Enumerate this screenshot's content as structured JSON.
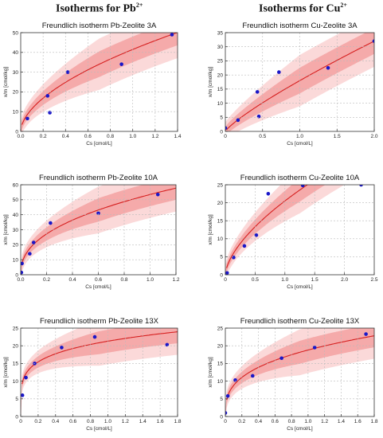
{
  "headers": {
    "left": "Isotherms for Pb",
    "left_sup": "2+",
    "right": "Isotherms for Cu",
    "right_sup": "2+"
  },
  "colors": {
    "fit_line": "#d62020",
    "inner_band": "#f5aaaa",
    "outer_band": "#fbd9d9",
    "points": "#1a17c8",
    "grid": "#bbbbbb"
  },
  "chart_data": [
    {
      "type": "scatter",
      "title": "Freundlich isotherm Pb-Zeolite 3A",
      "xlabel": "Cs [cmol/L]",
      "ylabel": "x/m [cmol/kg]",
      "xlim": [
        0,
        1.4
      ],
      "ylim": [
        0,
        50
      ],
      "xticks": [
        "0.0",
        "0.2",
        "0.4",
        "0.6",
        "0.8",
        "1.0",
        "1.2",
        "1.4"
      ],
      "yticks": [
        "0",
        "10",
        "20",
        "30",
        "40",
        "50"
      ],
      "grid": true,
      "points": [
        [
          0.06,
          6.5
        ],
        [
          0.24,
          18
        ],
        [
          0.26,
          9.5
        ],
        [
          0.42,
          30
        ],
        [
          0.9,
          34
        ],
        [
          1.35,
          49
        ]
      ],
      "fit": {
        "model": "freundlich",
        "k": 41.5,
        "n": 0.56
      }
    },
    {
      "type": "scatter",
      "title": "Freundlich isotherm Cu-Zeolite 3A",
      "xlabel": "Cs [cmol/L]",
      "ylabel": "x/m [cmol/kg]",
      "xlim": [
        0,
        2.0
      ],
      "ylim": [
        0,
        35
      ],
      "xticks": [
        "0",
        "0.5",
        "1.0",
        "1.5",
        "2.0"
      ],
      "yticks": [
        "0",
        "5",
        "10",
        "15",
        "20",
        "25",
        "30",
        "35"
      ],
      "grid": true,
      "points": [
        [
          0.0,
          1.2
        ],
        [
          0.17,
          4.0
        ],
        [
          0.43,
          14
        ],
        [
          0.45,
          5.3
        ],
        [
          0.72,
          21
        ],
        [
          1.38,
          22.5
        ],
        [
          2.0,
          32
        ]
      ],
      "fit": {
        "model": "freundlich",
        "k": 18.0,
        "n": 0.83
      }
    },
    {
      "type": "scatter",
      "title": "Freundlich isotherm Pb-Zeolite 10A",
      "xlabel": "Cs [cmol/L]",
      "ylabel": "x/m [cmol/kg]",
      "xlim": [
        0,
        1.2
      ],
      "ylim": [
        0,
        60
      ],
      "xticks": [
        "0.0",
        "0.2",
        "0.4",
        "0.6",
        "0.8",
        "1.0",
        "1.2"
      ],
      "yticks": [
        "0",
        "10",
        "20",
        "30",
        "40",
        "50",
        "60"
      ],
      "grid": true,
      "points": [
        [
          0.005,
          1.5
        ],
        [
          0.01,
          7.5
        ],
        [
          0.07,
          14
        ],
        [
          0.1,
          21.5
        ],
        [
          0.23,
          34.5
        ],
        [
          0.6,
          41
        ],
        [
          1.06,
          53.5
        ]
      ],
      "fit": {
        "model": "freundlich",
        "k": 53.5,
        "n": 0.42
      }
    },
    {
      "type": "scatter",
      "title": "Freundlich isotherm Cu-Zeolite 10A",
      "xlabel": "Cs [cmol/L]",
      "ylabel": "x/m [cmol/kg]",
      "xlim": [
        0,
        2.5
      ],
      "ylim": [
        0,
        25
      ],
      "xticks": [
        "0",
        "0.5",
        "1.0",
        "1.5",
        "2.0",
        "2.5"
      ],
      "yticks": [
        "0",
        "5",
        "10",
        "15",
        "20",
        "25"
      ],
      "grid": true,
      "points": [
        [
          0.03,
          0.5
        ],
        [
          0.14,
          4.8
        ],
        [
          0.32,
          8.0
        ],
        [
          0.52,
          11
        ],
        [
          0.72,
          22.5
        ],
        [
          1.3,
          24.8
        ],
        [
          2.28,
          25
        ]
      ],
      "fit": {
        "model": "freundlich",
        "k": 20.5,
        "n": 0.62
      }
    },
    {
      "type": "scatter",
      "title": "Freundlich isotherm Pb-Zeolite 13X",
      "xlabel": "Cs [cmol/L]",
      "ylabel": "x/m [cmol/kg]",
      "xlim": [
        0,
        1.8
      ],
      "ylim": [
        0,
        25
      ],
      "xticks": [
        "0",
        "0.2",
        "0.4",
        "0.6",
        "0.8",
        "1.0",
        "1.2",
        "1.4",
        "1.6",
        "1.8"
      ],
      "yticks": [
        "0",
        "5",
        "10",
        "15",
        "20",
        "25"
      ],
      "grid": true,
      "points": [
        [
          0.02,
          6.0
        ],
        [
          0.06,
          11
        ],
        [
          0.16,
          15
        ],
        [
          0.47,
          19.5
        ],
        [
          0.85,
          22.5
        ],
        [
          1.68,
          20.3
        ]
      ],
      "fit": {
        "model": "freundlich",
        "k": 21.3,
        "n": 0.2
      }
    },
    {
      "type": "scatter",
      "title": "Freundlich isotherm Cu-Zeolite 13X",
      "xlabel": "Cs [cmol/L]",
      "ylabel": "x/m [cmol/kg]",
      "xlim": [
        0,
        1.8
      ],
      "ylim": [
        0,
        25
      ],
      "xticks": [
        "0",
        "0.2",
        "0.4",
        "0.6",
        "0.8",
        "1.0",
        "1.2",
        "1.4",
        "1.6",
        "1.8"
      ],
      "yticks": [
        "0",
        "5",
        "10",
        "15",
        "20",
        "25"
      ],
      "grid": true,
      "points": [
        [
          0.0,
          1.0
        ],
        [
          0.03,
          5.8
        ],
        [
          0.12,
          10.3
        ],
        [
          0.33,
          11.5
        ],
        [
          0.68,
          16.5
        ],
        [
          1.08,
          19.5
        ],
        [
          1.7,
          23.3
        ]
      ],
      "fit": {
        "model": "freundlich",
        "k": 18.8,
        "n": 0.33
      }
    }
  ]
}
